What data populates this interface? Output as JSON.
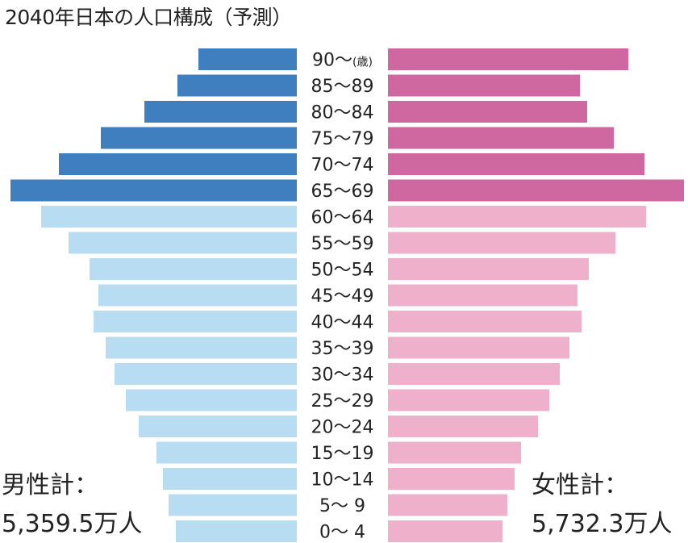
{
  "title": "2040年日本の人口構成（予測）",
  "male_total": {
    "label": "男性計：",
    "value": "5,359.5万人"
  },
  "female_total": {
    "label": "女性計：",
    "value": "5,732.3万人"
  },
  "colors": {
    "male_elderly": "#3f7fc0",
    "male_young": "#b8dcf2",
    "female_elderly": "#cf68a0",
    "female_young": "#efb0cc"
  },
  "chart_data": {
    "type": "bar",
    "subtype": "population-pyramid",
    "categories": [
      "90～(歳)",
      "85～89",
      "80～84",
      "75～79",
      "70～74",
      "65～69",
      "60～64",
      "55～59",
      "50～54",
      "45～49",
      "40～44",
      "35～39",
      "30～34",
      "25～29",
      "20～24",
      "15～19",
      "10～14",
      "5～ 9",
      "0～ 4"
    ],
    "series": [
      {
        "name": "男性",
        "values": [
          122,
          148,
          189,
          243,
          295,
          355,
          317,
          283,
          257,
          246,
          252,
          237,
          226,
          212,
          196,
          174,
          166,
          159,
          150
        ]
      },
      {
        "name": "女性",
        "values": [
          298,
          238,
          247,
          280,
          318,
          367,
          320,
          282,
          249,
          235,
          240,
          225,
          213,
          200,
          186,
          165,
          157,
          148,
          142
        ]
      }
    ],
    "elderly_categories_from_index": 0,
    "elderly_categories_to_index": 5
  }
}
